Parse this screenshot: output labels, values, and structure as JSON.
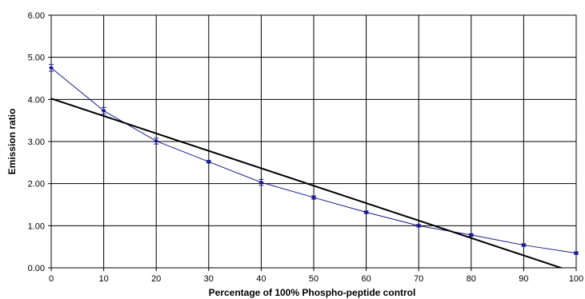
{
  "chart_data": {
    "type": "line",
    "xlabel": "Percentage of 100% Phospho-peptide control",
    "ylabel": "Emission ratio",
    "xlim": [
      0,
      100
    ],
    "ylim": [
      0,
      6
    ],
    "x_ticks": [
      "0",
      "10",
      "20",
      "30",
      "40",
      "50",
      "60",
      "70",
      "80",
      "90",
      "100"
    ],
    "y_ticks": [
      "0.00",
      "1.00",
      "2.00",
      "3.00",
      "4.00",
      "5.00",
      "6.00"
    ],
    "grid": true,
    "series": [
      {
        "kind": "data-with-error-bars",
        "color": "#1a1a8c",
        "x": [
          0,
          10,
          20,
          30,
          40,
          50,
          60,
          70,
          80,
          90,
          100
        ],
        "y": [
          4.75,
          3.73,
          3.01,
          2.52,
          2.03,
          1.67,
          1.32,
          1.0,
          0.78,
          0.54,
          0.35
        ],
        "error": [
          0.08,
          0.08,
          0.07,
          0.03,
          0.07,
          0.04,
          0.03,
          0.03,
          0.03,
          0.03,
          0.03
        ]
      },
      {
        "kind": "linear-trendline",
        "color": "#000000",
        "x": [
          0,
          100
        ],
        "y": [
          4.02,
          -0.12
        ]
      }
    ]
  }
}
